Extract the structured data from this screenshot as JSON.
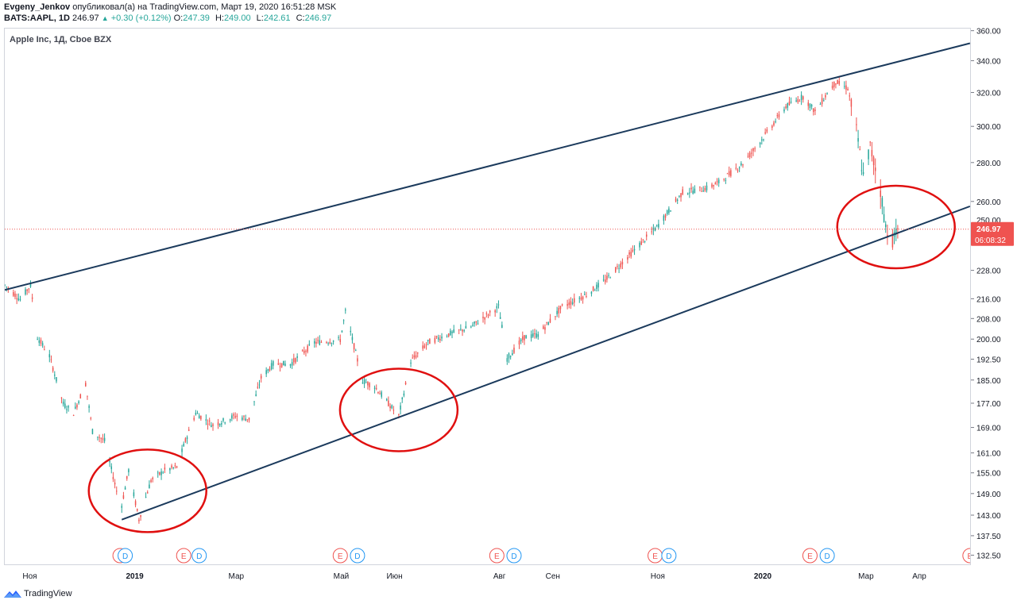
{
  "header": {
    "author": "Evgeny_Jenkov",
    "published_text": "опубликовал(а) на TradingView.com, Март 19, 2020 16:51:28 MSK",
    "symbol": "BATS:AAPL, 1D",
    "last": "246.97",
    "change": "+0.30 (+0.12%)",
    "o_label": "O:",
    "o": "247.39",
    "h_label": "H:",
    "h": "249.00",
    "l_label": "L:",
    "l": "242.61",
    "c_label": "C:",
    "c": "246.97"
  },
  "legend": "Apple Inc, 1Д, Cboe BZX",
  "price_badge": {
    "value": "246.97",
    "countdown": "06:08:32",
    "partial_tick": "250.00"
  },
  "footer": {
    "brand": "TradingView"
  },
  "colors": {
    "up": "#26a69a",
    "down": "#ef5350",
    "trendline": "#1b3a5c",
    "circle": "#e01010",
    "priceLine": "#ef5350"
  },
  "chart_data": {
    "type": "candlestick",
    "y_scale": "log",
    "ylim": [
      130,
      362
    ],
    "price_ticks": [
      "360.00",
      "340.00",
      "320.00",
      "300.00",
      "280.00",
      "260.00",
      "228.00",
      "216.00",
      "208.00",
      "200.00",
      "192.50",
      "185.00",
      "177.00",
      "169.00",
      "161.00",
      "155.00",
      "149.00",
      "143.00",
      "137.50",
      "132.50"
    ],
    "x_labels": [
      {
        "label": "Ноя",
        "date": "2018-11-01"
      },
      {
        "label": "2019",
        "date": "2019-01-01",
        "bold": true
      },
      {
        "label": "Мар",
        "date": "2019-03-01"
      },
      {
        "label": "Май",
        "date": "2019-05-01"
      },
      {
        "label": "Июн",
        "date": "2019-06-01"
      },
      {
        "label": "Авг",
        "date": "2019-08-01"
      },
      {
        "label": "Сен",
        "date": "2019-09-01"
      },
      {
        "label": "Ноя",
        "date": "2019-11-01"
      },
      {
        "label": "2020",
        "date": "2020-01-01",
        "bold": true
      },
      {
        "label": "Мар",
        "date": "2020-03-01"
      },
      {
        "label": "Апр",
        "date": "2020-04-01"
      }
    ],
    "x_range": [
      "2018-10-17",
      "2020-05-01"
    ],
    "last_price": 246.97,
    "ohlc_anchors": [
      [
        "2018-10-17",
        222
      ],
      [
        "2018-10-26",
        216
      ],
      [
        "2018-11-01",
        222
      ],
      [
        "2018-11-05",
        201
      ],
      [
        "2018-11-12",
        194
      ],
      [
        "2018-11-20",
        177
      ],
      [
        "2018-11-26",
        174
      ],
      [
        "2018-12-03",
        184
      ],
      [
        "2018-12-07",
        168
      ],
      [
        "2018-12-14",
        165
      ],
      [
        "2018-12-21",
        150
      ],
      [
        "2018-12-24",
        146
      ],
      [
        "2018-12-28",
        156
      ],
      [
        "2019-01-03",
        142
      ],
      [
        "2019-01-10",
        153
      ],
      [
        "2019-01-18",
        156
      ],
      [
        "2019-01-25",
        157
      ],
      [
        "2019-01-30",
        165
      ],
      [
        "2019-02-05",
        174
      ],
      [
        "2019-02-15",
        170
      ],
      [
        "2019-02-28",
        173
      ],
      [
        "2019-03-08",
        172
      ],
      [
        "2019-03-15",
        186
      ],
      [
        "2019-03-22",
        191
      ],
      [
        "2019-04-01",
        191
      ],
      [
        "2019-04-15",
        199
      ],
      [
        "2019-04-30",
        200
      ],
      [
        "2019-05-03",
        211
      ],
      [
        "2019-05-13",
        185
      ],
      [
        "2019-05-20",
        183
      ],
      [
        "2019-05-31",
        175
      ],
      [
        "2019-06-03",
        173
      ],
      [
        "2019-06-10",
        192
      ],
      [
        "2019-06-20",
        199
      ],
      [
        "2019-07-01",
        202
      ],
      [
        "2019-07-15",
        205
      ],
      [
        "2019-07-31",
        213
      ],
      [
        "2019-08-05",
        193
      ],
      [
        "2019-08-15",
        201
      ],
      [
        "2019-08-23",
        202
      ],
      [
        "2019-09-06",
        213
      ],
      [
        "2019-09-20",
        218
      ],
      [
        "2019-10-01",
        224
      ],
      [
        "2019-10-15",
        235
      ],
      [
        "2019-10-31",
        248
      ],
      [
        "2019-11-15",
        265
      ],
      [
        "2019-11-29",
        267
      ],
      [
        "2019-12-06",
        270
      ],
      [
        "2019-12-20",
        280
      ],
      [
        "2019-12-31",
        293
      ],
      [
        "2020-01-14",
        312
      ],
      [
        "2020-01-24",
        318
      ],
      [
        "2020-01-31",
        309
      ],
      [
        "2020-02-07",
        320
      ],
      [
        "2020-02-12",
        327
      ],
      [
        "2020-02-19",
        323
      ],
      [
        "2020-02-24",
        298
      ],
      [
        "2020-02-28",
        273
      ],
      [
        "2020-03-03",
        289
      ],
      [
        "2020-03-09",
        266
      ],
      [
        "2020-03-12",
        248
      ],
      [
        "2020-03-16",
        242
      ],
      [
        "2020-03-19",
        246.97
      ]
    ],
    "trendlines": [
      {
        "name": "upper",
        "from": [
          "2018-10-17",
          220
        ],
        "to": [
          "2020-04-30",
          352
        ]
      },
      {
        "name": "lower",
        "from": [
          "2018-12-24",
          142
        ],
        "to": [
          "2020-04-30",
          258
        ]
      }
    ],
    "circles": [
      {
        "date": "2019-01-08",
        "price": 150
      },
      {
        "date": "2019-06-03",
        "price": 175
      },
      {
        "date": "2020-03-18",
        "price": 248
      }
    ],
    "earnings_markers": {
      "E": [
        "2018-12-23",
        "2019-01-29",
        "2019-04-30",
        "2019-07-30",
        "2019-10-30",
        "2020-01-28",
        "2020-04-30"
      ],
      "D": [
        "2018-12-26",
        "2019-02-07",
        "2019-05-10",
        "2019-08-09",
        "2019-11-07",
        "2020-02-07"
      ]
    }
  }
}
